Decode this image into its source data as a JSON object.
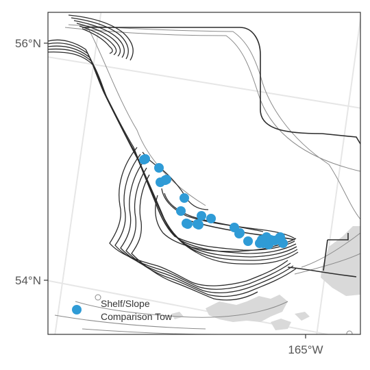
{
  "map": {
    "y_axis": {
      "ticks": [
        {
          "label": "56°N",
          "lat": 56
        },
        {
          "label": "54°N",
          "lat": 54
        }
      ]
    },
    "x_axis": {
      "ticks": [
        {
          "label": "165°W",
          "lon": -165
        }
      ]
    },
    "legend": {
      "position": "bottom-left",
      "items": [
        {
          "label_line1": "Shelf/Slope",
          "label_line2": "Comparison Tow",
          "color": "#2f9bd6",
          "symbol": "circle"
        }
      ]
    },
    "colors": {
      "points": "#2f9bd6",
      "land": "#d9d9d9",
      "graticule": "#e6e6e6",
      "dark_contour": "#2b2b2b",
      "light_contour": "#8a8a8a",
      "frame": "#333333"
    },
    "point_count": 31
  }
}
